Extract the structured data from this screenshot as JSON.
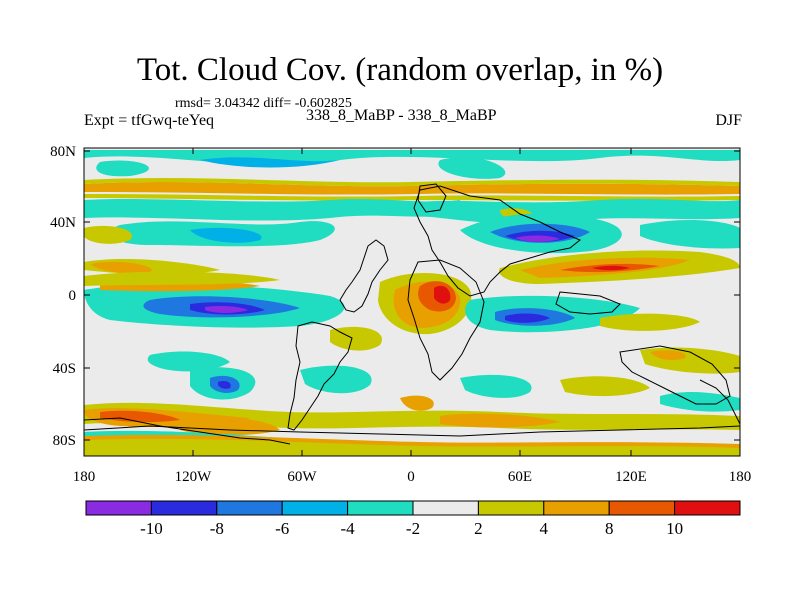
{
  "title": "Tot. Cloud Cov. (random overlap, in %)",
  "stats": "rmsd= 3.04342 diff= -0.602825",
  "expt": "Expt = tfGwq-teYeq",
  "case": "338_8_MaBP - 338_8_MaBP",
  "season": "DJF",
  "lat_labels": [
    "80N",
    "40N",
    "0",
    "40S",
    "80S"
  ],
  "lon_labels": [
    "180",
    "120W",
    "60W",
    "0",
    "60E",
    "120E",
    "180"
  ],
  "colorbar": {
    "colors": [
      "#8a2be2",
      "#2a2adf",
      "#1e78e0",
      "#00b0e6",
      "#20dcc0",
      "#ebebeb",
      "#c8c800",
      "#e8a000",
      "#e85800",
      "#e01010"
    ],
    "labels": [
      "-10",
      "-8",
      "-6",
      "-4",
      "-2",
      "2",
      "4",
      "8",
      "10"
    ]
  },
  "colors": {
    "land_outline": "#000000",
    "background": "#ebebeb"
  }
}
